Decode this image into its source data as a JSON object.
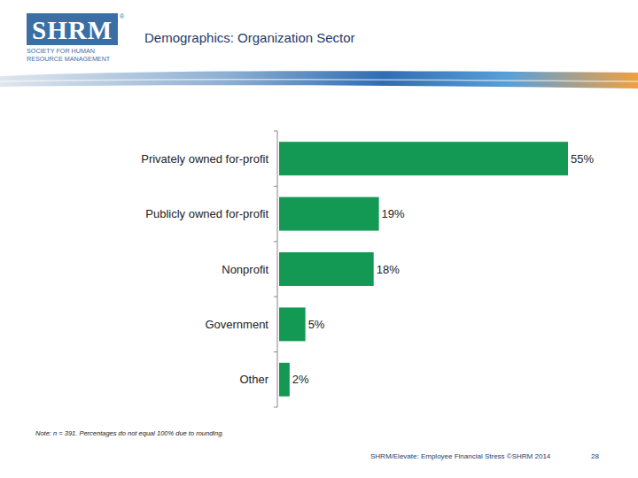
{
  "header": {
    "logo_text": "SHRM",
    "logo_mark": "®",
    "logo_subtitle": [
      "SOCIETY FOR HUMAN",
      "RESOURCE MANAGEMENT"
    ]
  },
  "chart_data": {
    "type": "bar",
    "title": "Demographics: Organization Sector",
    "orientation": "horizontal",
    "categories": [
      "Privately owned for-profit",
      "Publicly owned for-profit",
      "Nonprofit",
      "Government",
      "Other"
    ],
    "values": [
      55,
      19,
      18,
      5,
      2
    ],
    "value_labels": [
      "55%",
      "19%",
      "18%",
      "5%",
      "2%"
    ],
    "color": "#149954",
    "xlim": [
      0,
      55
    ],
    "data_labels": true,
    "tick_labels": "y",
    "grid": false,
    "note": "Note: n = 391. Percentages do not equal 100% due to rounding."
  },
  "footer": {
    "source": "SHRM/Elevate: Employee Financial Stress ©SHRM 2014",
    "page": "28"
  }
}
